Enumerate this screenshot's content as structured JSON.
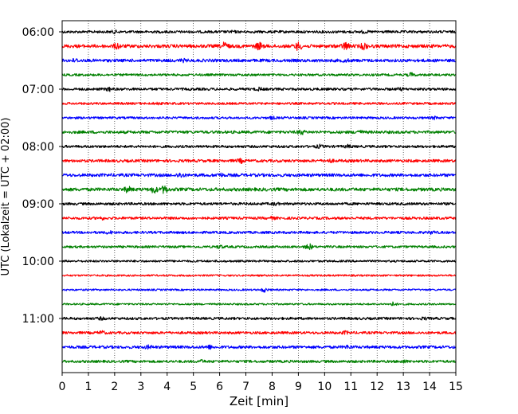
{
  "chart_data": {
    "type": "line",
    "description_kind": "helicorder",
    "xlabel": "Zeit  [min]",
    "ylabel": "UTC (Lokalzeit = UTC + 02:00)",
    "xlim": [
      0,
      15
    ],
    "x_ticks": [
      0,
      1,
      2,
      3,
      4,
      5,
      6,
      7,
      8,
      9,
      10,
      11,
      12,
      13,
      14,
      15
    ],
    "x_tick_labels": [
      "0",
      "1",
      "2",
      "3",
      "4",
      "5",
      "6",
      "7",
      "8",
      "9",
      "10",
      "11",
      "12",
      "13",
      "14",
      "15"
    ],
    "y_tick_labels": [
      "06:00",
      "07:00",
      "08:00",
      "09:00",
      "10:00",
      "11:00"
    ],
    "grid": {
      "vertical": true,
      "style": "dotted"
    },
    "trace_colors": [
      "#000000",
      "#ff0000",
      "#0000ff",
      "#008000"
    ],
    "series": [
      {
        "start": "06:00",
        "color": "#000000",
        "amplitude": 1.0,
        "bursts": [
          [
            2.0,
            0.6
          ],
          [
            6.5,
            0.4
          ],
          [
            11.5,
            0.5
          ]
        ]
      },
      {
        "start": "06:15",
        "color": "#ff0000",
        "amplitude": 1.3,
        "bursts": [
          [
            2.1,
            1.6
          ],
          [
            6.2,
            2.4
          ],
          [
            7.5,
            2.4
          ],
          [
            9.0,
            2.6
          ],
          [
            10.8,
            2.5
          ],
          [
            11.5,
            2.0
          ]
        ]
      },
      {
        "start": "06:30",
        "color": "#0000ff",
        "amplitude": 1.2,
        "bursts": [
          [
            0.5,
            0.8
          ],
          [
            4.6,
            0.6
          ],
          [
            10.8,
            0.6
          ]
        ]
      },
      {
        "start": "06:45",
        "color": "#008000",
        "amplitude": 0.9,
        "bursts": [
          [
            13.3,
            1.2
          ]
        ]
      },
      {
        "start": "07:00",
        "color": "#000000",
        "amplitude": 1.0,
        "bursts": [
          [
            1.8,
            1.0
          ],
          [
            7.5,
            0.8
          ],
          [
            12.9,
            0.6
          ]
        ]
      },
      {
        "start": "07:15",
        "color": "#ff0000",
        "amplitude": 0.9,
        "bursts": [
          [
            3.6,
            0.6
          ]
        ]
      },
      {
        "start": "07:30",
        "color": "#0000ff",
        "amplitude": 0.9,
        "bursts": [
          [
            8.0,
            0.7
          ],
          [
            14.2,
            0.8
          ]
        ]
      },
      {
        "start": "07:45",
        "color": "#008000",
        "amplitude": 1.1,
        "bursts": [
          [
            9.1,
            1.5
          ],
          [
            11.3,
            1.2
          ]
        ]
      },
      {
        "start": "08:00",
        "color": "#000000",
        "amplitude": 1.0,
        "bursts": [
          [
            9.8,
            0.9
          ],
          [
            10.9,
            0.8
          ]
        ]
      },
      {
        "start": "08:15",
        "color": "#ff0000",
        "amplitude": 1.1,
        "bursts": [
          [
            6.8,
            1.1
          ],
          [
            10.2,
            0.8
          ]
        ]
      },
      {
        "start": "08:30",
        "color": "#0000ff",
        "amplitude": 1.2,
        "bursts": [
          [
            4.5,
            1.4
          ],
          [
            6.0,
            1.0
          ]
        ]
      },
      {
        "start": "08:45",
        "color": "#008000",
        "amplitude": 1.3,
        "bursts": [
          [
            2.5,
            1.6
          ],
          [
            3.5,
            2.0
          ],
          [
            3.9,
            2.4
          ]
        ]
      },
      {
        "start": "09:00",
        "color": "#000000",
        "amplitude": 1.0,
        "bursts": [
          [
            8.1,
            0.7
          ]
        ]
      },
      {
        "start": "09:15",
        "color": "#ff0000",
        "amplitude": 1.0,
        "bursts": [
          [
            1.5,
            0.7
          ],
          [
            8.0,
            0.6
          ]
        ]
      },
      {
        "start": "09:30",
        "color": "#0000ff",
        "amplitude": 1.0,
        "bursts": [
          [
            1.8,
            0.8
          ],
          [
            14.1,
            0.8
          ]
        ]
      },
      {
        "start": "09:45",
        "color": "#008000",
        "amplitude": 0.9,
        "bursts": [
          [
            6.0,
            1.0
          ],
          [
            9.4,
            2.0
          ]
        ]
      },
      {
        "start": "10:00",
        "color": "#000000",
        "amplitude": 0.8,
        "bursts": []
      },
      {
        "start": "10:15",
        "color": "#ff0000",
        "amplitude": 0.7,
        "bursts": []
      },
      {
        "start": "10:30",
        "color": "#0000ff",
        "amplitude": 0.7,
        "bursts": [
          [
            7.7,
            1.4
          ]
        ]
      },
      {
        "start": "10:45",
        "color": "#008000",
        "amplitude": 0.7,
        "bursts": [
          [
            12.6,
            1.2
          ]
        ]
      },
      {
        "start": "11:00",
        "color": "#000000",
        "amplitude": 1.0,
        "bursts": [
          [
            1.5,
            0.6
          ],
          [
            13.8,
            0.5
          ]
        ]
      },
      {
        "start": "11:15",
        "color": "#ff0000",
        "amplitude": 1.0,
        "bursts": [
          [
            1.5,
            1.0
          ],
          [
            10.8,
            0.8
          ]
        ]
      },
      {
        "start": "11:30",
        "color": "#0000ff",
        "amplitude": 1.1,
        "bursts": [
          [
            3.3,
            0.9
          ],
          [
            5.6,
            1.0
          ],
          [
            10.9,
            0.9
          ]
        ]
      },
      {
        "start": "11:45",
        "color": "#008000",
        "amplitude": 1.0,
        "bursts": [
          [
            5.3,
            0.7
          ],
          [
            13.0,
            0.7
          ]
        ]
      }
    ]
  }
}
